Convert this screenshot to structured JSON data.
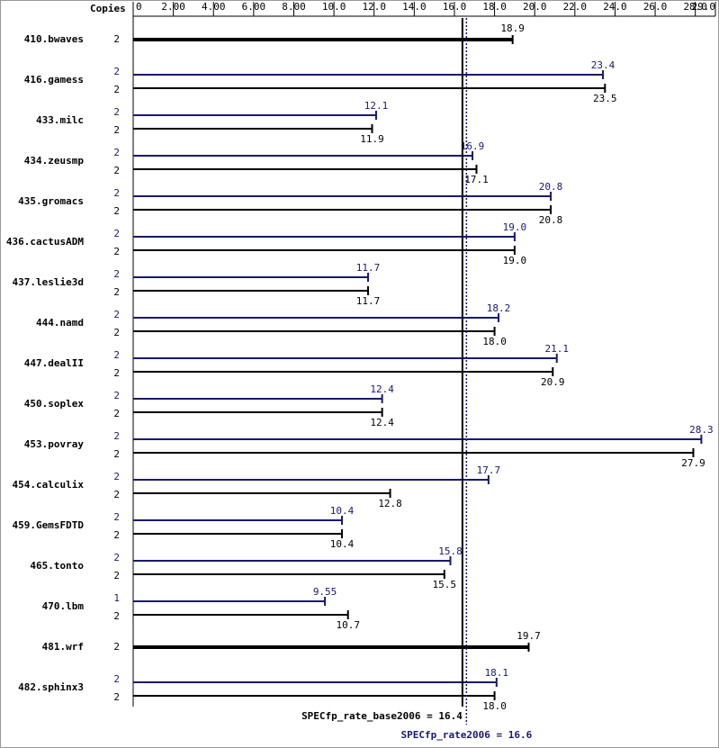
{
  "chart_data": {
    "type": "spec-bar",
    "copies_label": "Copies",
    "categories": [
      "410.bwaves",
      "416.gamess",
      "433.milc",
      "434.zeusmp",
      "435.gromacs",
      "436.cactusADM",
      "437.leslie3d",
      "444.namd",
      "447.dealII",
      "450.soplex",
      "453.povray",
      "454.calculix",
      "459.GemsFDTD",
      "465.tonto",
      "470.lbm",
      "481.wrf",
      "482.sphinx3"
    ],
    "series": [
      {
        "name": "peak",
        "color": "#191970",
        "copies": [
          null,
          2,
          2,
          2,
          2,
          2,
          2,
          2,
          2,
          2,
          2,
          2,
          2,
          2,
          1,
          null,
          2
        ],
        "values": [
          null,
          23.4,
          12.1,
          16.9,
          20.8,
          19,
          11.7,
          18.2,
          21.1,
          12.4,
          28.3,
          17.7,
          10.4,
          15.8,
          9.55,
          null,
          18.1
        ],
        "value_labels": [
          null,
          "23.4",
          "12.1",
          "16.9",
          "20.8",
          "19.0",
          "11.7",
          "18.2",
          "21.1",
          "12.4",
          "28.3",
          "17.7",
          "10.4",
          "15.8",
          "9.55",
          null,
          "18.1"
        ]
      },
      {
        "name": "base",
        "color": "#000000",
        "copies": [
          2,
          2,
          2,
          2,
          2,
          2,
          2,
          2,
          2,
          2,
          2,
          2,
          2,
          2,
          2,
          2,
          2
        ],
        "values": [
          18.9,
          23.5,
          11.9,
          17.1,
          20.8,
          19,
          11.7,
          18,
          20.9,
          12.4,
          27.9,
          12.8,
          10.4,
          15.5,
          10.7,
          19.7,
          18
        ],
        "value_labels": [
          "18.9",
          "23.5",
          "11.9",
          "17.1",
          "20.8",
          "19.0",
          "11.7",
          "18.0",
          "20.9",
          "12.4",
          "27.9",
          "12.8",
          "10.4",
          "15.5",
          "10.7",
          "19.7",
          "18.0"
        ]
      }
    ],
    "xlim": [
      0,
      29
    ],
    "xticks": [
      0,
      {
        "value": 2,
        "label": "2.00"
      },
      {
        "value": 4,
        "label": "4.00"
      },
      {
        "value": 6,
        "label": "6.00"
      },
      {
        "value": 8,
        "label": "8.00"
      },
      {
        "value": 10,
        "label": "10.0"
      },
      {
        "value": 12,
        "label": "12.0"
      },
      {
        "value": 14,
        "label": "14.0"
      },
      {
        "value": 16,
        "label": "16.0"
      },
      {
        "value": 18,
        "label": "18.0"
      },
      {
        "value": 20,
        "label": "20.0"
      },
      {
        "value": 22,
        "label": "22.0"
      },
      {
        "value": 24,
        "label": "24.0"
      },
      {
        "value": 26,
        "label": "26.0"
      },
      {
        "value": 28,
        "label": "28.0"
      },
      {
        "value": 29,
        "label": "29.0"
      }
    ],
    "reference_lines": [
      {
        "label": "SPECfp_rate_base2006 = 16.4",
        "value": 16.4,
        "color": "#000000"
      },
      {
        "label": "SPECfp_rate2006 = 16.6",
        "value": 16.6,
        "color": "#191970"
      }
    ]
  }
}
